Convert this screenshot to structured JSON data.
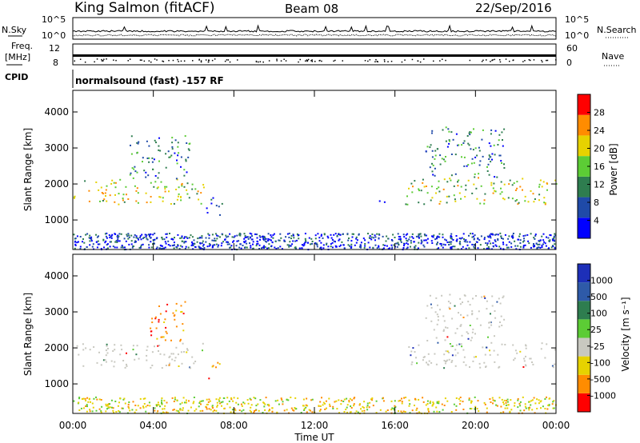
{
  "header": {
    "station": "King Salmon (fitACF)",
    "beam": "Beam 08",
    "date": "22/Sep/2016"
  },
  "strips": {
    "nsky_label": "N.Sky",
    "nsky_ticks": [
      "10^5",
      "10^0"
    ],
    "nsearch_label": "N.Search",
    "nsearch_ticks": [
      "10^5",
      "10^0"
    ],
    "freq_label_1": "Freq.",
    "freq_label_2": "[MHz]",
    "freq_ticks": [
      "12",
      "8"
    ],
    "nave_label": "Nave",
    "nave_ticks": [
      "60",
      "0"
    ],
    "cpid_label": "CPID",
    "cpid_text": "normalsound (fast) -157 RF"
  },
  "axes": {
    "ylabel": "Slant Range [km]",
    "xlabel": "Time UT",
    "y_ticks": [
      "1000",
      "2000",
      "3000",
      "4000"
    ],
    "x_ticks": [
      "00:00",
      "04:00",
      "08:00",
      "12:00",
      "16:00",
      "20:00",
      "00:00"
    ]
  },
  "chart_data": [
    {
      "type": "heatmap",
      "title": "",
      "xlabel": "Time UT",
      "ylabel": "Slant Range [km]",
      "x_range_hours": [
        0,
        24
      ],
      "y_range_km": [
        180,
        4600
      ],
      "colorbar": {
        "label": "Power [dB]",
        "ticks": [
          "4",
          "8",
          "12",
          "16",
          "20",
          "24",
          "28"
        ],
        "range": [
          0,
          30
        ],
        "colors": [
          "#0000ff",
          "#1f4aa8",
          "#2e7d4f",
          "#5ccc35",
          "#e6d200",
          "#ff8c00",
          "#ff0000"
        ]
      },
      "regions": [
        {
          "t0": 0.0,
          "t1": 6.5,
          "r0": 1450,
          "r1": 2150,
          "level": 18
        },
        {
          "t0": 2.8,
          "t1": 5.8,
          "r0": 2150,
          "r1": 3400,
          "level": 10
        },
        {
          "t0": 6.6,
          "t1": 7.4,
          "r0": 1150,
          "r1": 1700,
          "level": 6
        },
        {
          "t0": 15.2,
          "t1": 15.5,
          "r0": 1450,
          "r1": 1750,
          "level": 6
        },
        {
          "t0": 16.5,
          "t1": 24.0,
          "r0": 1450,
          "r1": 2200,
          "level": 16
        },
        {
          "t0": 17.5,
          "t1": 21.5,
          "r0": 2200,
          "r1": 3600,
          "level": 10
        },
        {
          "t0": 0.0,
          "t1": 24.0,
          "r0": 200,
          "r1": 650,
          "level": 5
        }
      ]
    },
    {
      "type": "heatmap",
      "title": "",
      "xlabel": "Time UT",
      "ylabel": "Slant Range [km]",
      "x_range_hours": [
        0,
        24
      ],
      "y_range_km": [
        180,
        4600
      ],
      "colorbar": {
        "label": "Velocity [m s⁻¹]",
        "ticks": [
          "1000",
          "500",
          "100",
          "25",
          "-25",
          "-100",
          "-500",
          "-1000"
        ],
        "colors": [
          "#1d2fb8",
          "#2e5aa8",
          "#2e7d4f",
          "#5ccc35",
          "#c8c8c0",
          "#e6d200",
          "#ff8c00",
          "#ff0000"
        ]
      },
      "regions": [
        {
          "t0": 0.0,
          "t1": 6.5,
          "r0": 1450,
          "r1": 2150,
          "class": "ground scatter"
        },
        {
          "t0": 3.8,
          "t1": 5.6,
          "r0": 2200,
          "r1": 3500,
          "class": "-500"
        },
        {
          "t0": 6.6,
          "t1": 7.3,
          "r0": 1150,
          "r1": 1650,
          "class": "-500"
        },
        {
          "t0": 16.5,
          "t1": 24.0,
          "r0": 1450,
          "r1": 2200,
          "class": "ground scatter"
        },
        {
          "t0": 17.5,
          "t1": 21.5,
          "r0": 2200,
          "r1": 3500,
          "class": "ground scatter"
        },
        {
          "t0": 0.0,
          "t1": 24.0,
          "r0": 200,
          "r1": 650,
          "class": "-100"
        }
      ]
    }
  ]
}
